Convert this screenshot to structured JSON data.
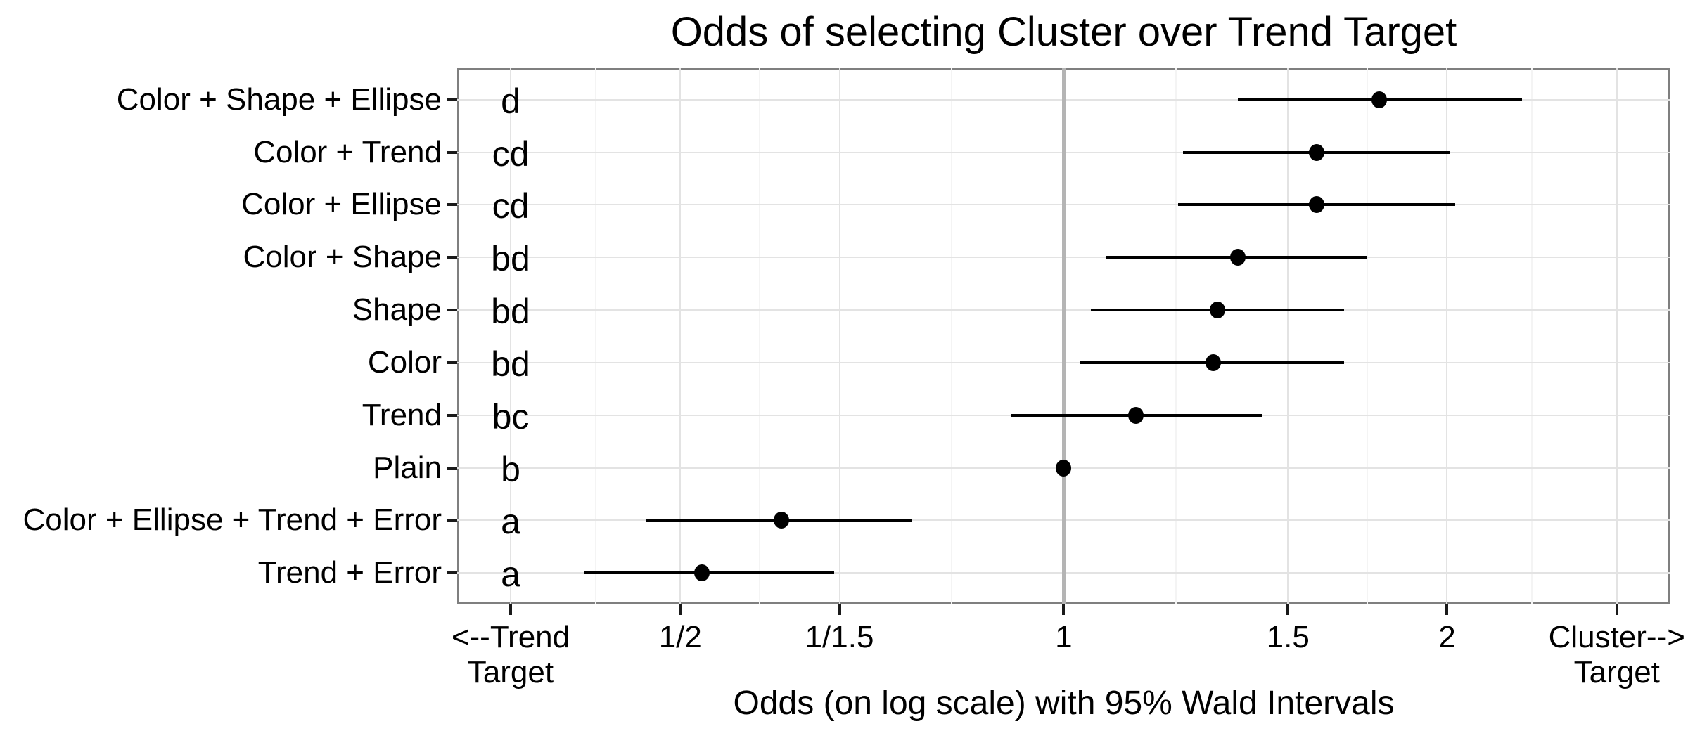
{
  "title": "Odds of selecting Cluster over Trend Target",
  "chart_data": {
    "type": "scatter",
    "subtype": "dot-and-95ci-forest-plot",
    "title": "Odds of selecting Cluster over Trend Target",
    "xlabel": "Odds (on log scale) with 95% Wald Intervals",
    "ylabel": "",
    "x_scale": "log",
    "xlim": [
      0.334,
      2.995
    ],
    "x_ticks": [
      {
        "value": 0.36788,
        "label": "<--Trend\nTarget"
      },
      {
        "value": 0.5,
        "label": "1/2"
      },
      {
        "value": 0.66667,
        "label": "1/1.5"
      },
      {
        "value": 1,
        "label": "1"
      },
      {
        "value": 1.5,
        "label": "1.5"
      },
      {
        "value": 2,
        "label": "2"
      },
      {
        "value": 2.71828,
        "label": "Cluster-->\nTarget"
      }
    ],
    "reference_line_x": 1,
    "grid": "major+minor vertical, major horizontal per category",
    "legend": "none",
    "letter_annotation_x": 0.36788,
    "rows": [
      {
        "category": "Color + Shape + Ellipse",
        "group_letter": "d",
        "odds": 1.77,
        "ci_low": 1.37,
        "ci_high": 2.29
      },
      {
        "category": "Color + Trend",
        "group_letter": "cd",
        "odds": 1.58,
        "ci_low": 1.24,
        "ci_high": 2.01
      },
      {
        "category": "Color + Ellipse",
        "group_letter": "cd",
        "odds": 1.58,
        "ci_low": 1.23,
        "ci_high": 2.03
      },
      {
        "category": "Color + Shape",
        "group_letter": "bd",
        "odds": 1.37,
        "ci_low": 1.08,
        "ci_high": 1.73
      },
      {
        "category": "Shape",
        "group_letter": "bd",
        "odds": 1.32,
        "ci_low": 1.05,
        "ci_high": 1.66
      },
      {
        "category": "Color",
        "group_letter": "bd",
        "odds": 1.31,
        "ci_low": 1.03,
        "ci_high": 1.66
      },
      {
        "category": "Trend",
        "group_letter": "bc",
        "odds": 1.14,
        "ci_low": 0.91,
        "ci_high": 1.43
      },
      {
        "category": "Plain",
        "group_letter": "b",
        "odds": 1.0,
        "ci_low": null,
        "ci_high": null
      },
      {
        "category": "Color + Ellipse + Trend + Error",
        "group_letter": "a",
        "odds": 0.6,
        "ci_low": 0.47,
        "ci_high": 0.76
      },
      {
        "category": "Trend + Error",
        "group_letter": "a",
        "odds": 0.52,
        "ci_low": 0.42,
        "ci_high": 0.66
      }
    ],
    "colors": {
      "point": "#000000",
      "errorbar": "#000000",
      "grid_major": "#e3e3e3",
      "grid_minor": "#f4f4f4",
      "panel_border": "#7f7f7f",
      "reference_line": "#b4b4b4",
      "tick_mark": "#1a1a1a",
      "text": "#000000",
      "background": "#ffffff"
    }
  }
}
